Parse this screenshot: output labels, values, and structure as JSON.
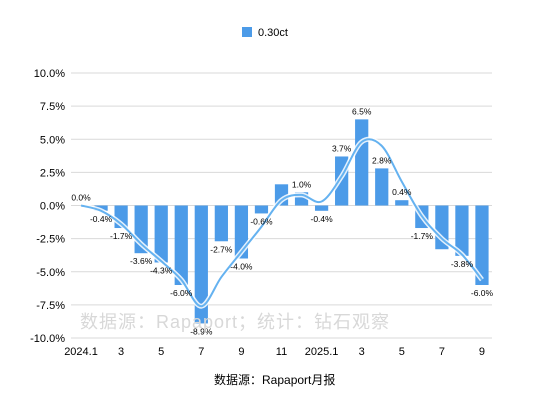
{
  "chart_data": {
    "type": "bar",
    "categories": [
      "2024.1",
      "2",
      "3",
      "4",
      "5",
      "6",
      "7",
      "8",
      "9",
      "10",
      "11",
      "12",
      "2025.1",
      "2",
      "3",
      "4",
      "5",
      "6",
      "7",
      "8",
      "9"
    ],
    "x_tick_labels": [
      "2024.1",
      "",
      "3",
      "",
      "5",
      "",
      "7",
      "",
      "9",
      "",
      "11",
      "",
      "2025.1",
      "",
      "3",
      "",
      "5",
      "",
      "7",
      "",
      "9"
    ],
    "series": [
      {
        "name": "0.30ct",
        "values": [
          0.0,
          -0.4,
          -1.7,
          -3.6,
          -4.3,
          -6.0,
          -8.9,
          -2.7,
          -4.0,
          -0.6,
          1.6,
          1.0,
          -0.4,
          3.7,
          6.5,
          2.8,
          0.4,
          -1.7,
          -3.3,
          -3.8,
          -6.0
        ],
        "labels": [
          "0.0%",
          "-0.4%",
          "-1.7%",
          "-3.6%",
          "-4.3%",
          "-6.0%",
          "-8.9%",
          "-2.7%",
          "-4.0%",
          "-0.6%",
          "",
          "1.0%",
          "-0.4%",
          "3.7%",
          "6.5%",
          "2.8%",
          "0.4%",
          "-1.7%",
          "",
          "-3.8%",
          "-6.0%"
        ],
        "color": "#4c9be8"
      }
    ],
    "trendline": {
      "values": [
        0.0,
        -0.4,
        -1.4,
        -2.9,
        -4.2,
        -5.6,
        -7.6,
        -5.4,
        -3.5,
        -1.6,
        0.4,
        0.8,
        0.3,
        2.2,
        4.8,
        4.5,
        1.8,
        -0.8,
        -2.5,
        -3.7,
        -5.6
      ],
      "color": "#65b2f0"
    },
    "ylim": [
      -10,
      10
    ],
    "y_ticks": [
      -10,
      -7.5,
      -5,
      -2.5,
      0,
      2.5,
      5,
      7.5,
      10
    ],
    "y_tick_labels": [
      "-10.0%",
      "-7.5%",
      "-5.0%",
      "-2.5%",
      "0.0%",
      "2.5%",
      "5.0%",
      "7.5%",
      "10.0%"
    ],
    "legend_position": "top-center",
    "grid": "horizontal"
  },
  "watermark": "数据源：Rapaport；统计：钻石观察",
  "source_note": "数据源：Rapaport月报"
}
